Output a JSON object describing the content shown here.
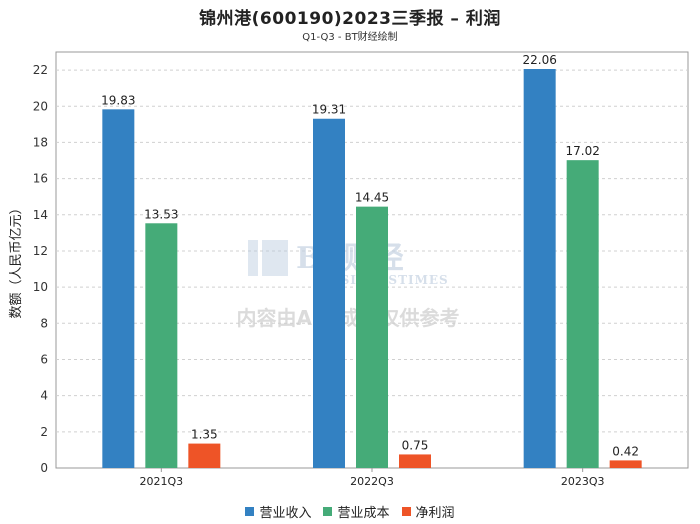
{
  "chart_data": {
    "type": "bar",
    "title": "锦州港(600190)2023三季报 – 利润",
    "subtitle": "Q1-Q3 - BT财经绘制",
    "xlabel": "",
    "ylabel": "数额（人民币亿元）",
    "categories": [
      "2021Q3",
      "2022Q3",
      "2023Q3"
    ],
    "series": [
      {
        "name": "营业收入",
        "color": "#3381c2",
        "values": [
          19.83,
          19.31,
          22.06
        ],
        "labels": [
          "19.83",
          "19.31",
          "22.06"
        ]
      },
      {
        "name": "营业成本",
        "color": "#45ab78",
        "values": [
          13.53,
          14.45,
          17.02
        ],
        "labels": [
          "13.53",
          "14.45",
          "17.02"
        ]
      },
      {
        "name": "净利润",
        "color": "#ee5427",
        "values": [
          1.35,
          0.75,
          0.42
        ],
        "labels": [
          "1.35",
          "0.75",
          "0.42"
        ]
      }
    ],
    "ylim": [
      0,
      23
    ],
    "yticks": [
      0,
      2,
      4,
      6,
      8,
      10,
      12,
      14,
      16,
      18,
      20,
      22
    ],
    "grid": true,
    "legend": "bottom-center"
  },
  "watermark": {
    "brand": "BT财经",
    "brand_sub": "BUSINESSTIMES",
    "notice": "内容由AI生成，仅供参考"
  }
}
